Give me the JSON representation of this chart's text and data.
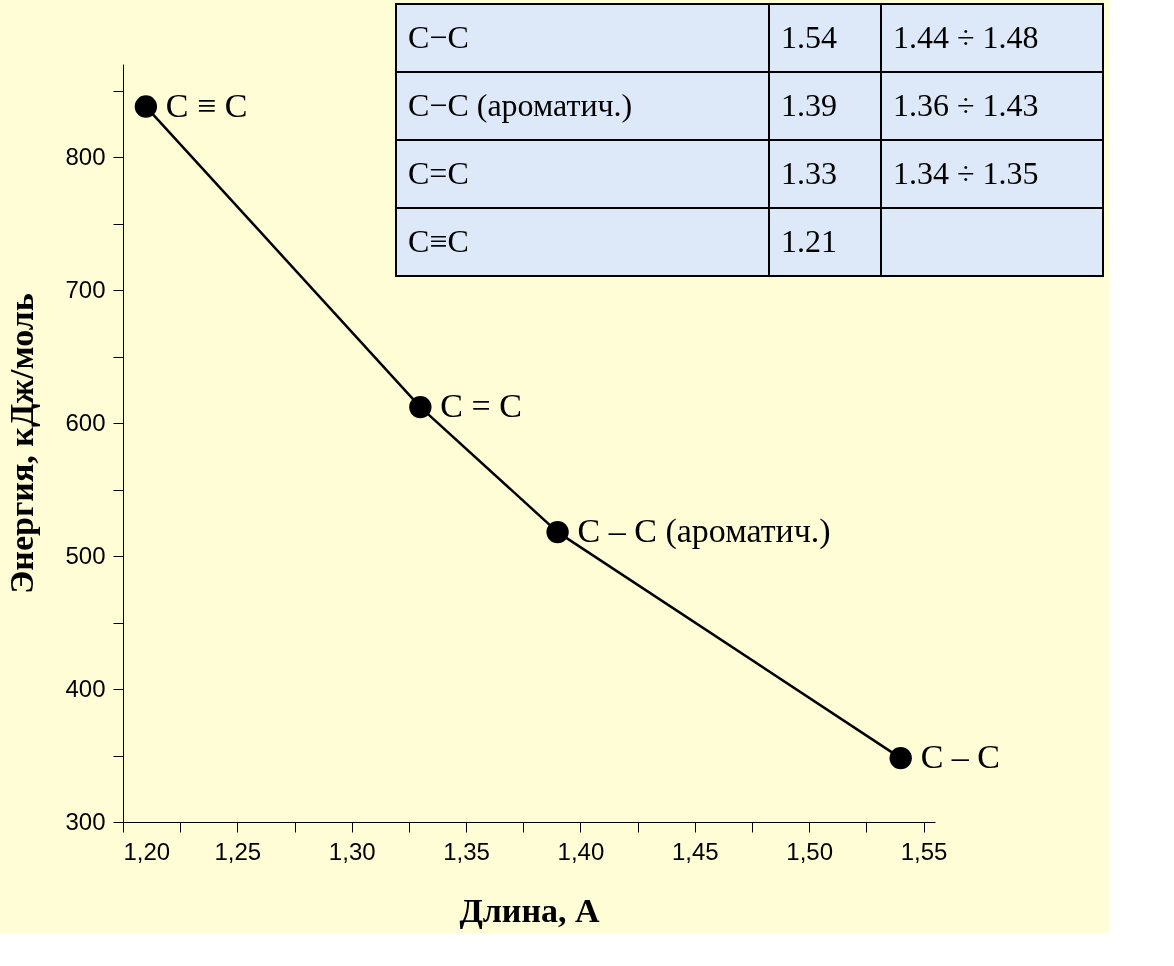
{
  "chart_data": {
    "type": "line",
    "xlabel": "Длина, А",
    "ylabel": "Энергия, кДж/моль",
    "x": [
      1.21,
      1.33,
      1.39,
      1.54
    ],
    "series": [
      {
        "color": "#000000",
        "values": [
          838,
          612,
          518,
          348
        ]
      }
    ],
    "marker": "circle",
    "line_style": "solid",
    "grid": false,
    "xlim": [
      1.2,
      1.555
    ],
    "xticks": [
      {
        "value": 1.2,
        "label": "1,20"
      },
      {
        "value": 1.225,
        "label": null
      },
      {
        "value": 1.25,
        "label": "1,25"
      },
      {
        "value": 1.275,
        "label": null
      },
      {
        "value": 1.3,
        "label": "1,30"
      },
      {
        "value": 1.325,
        "label": null
      },
      {
        "value": 1.35,
        "label": "1,35"
      },
      {
        "value": 1.375,
        "label": null
      },
      {
        "value": 1.4,
        "label": "1,40"
      },
      {
        "value": 1.425,
        "label": null
      },
      {
        "value": 1.45,
        "label": "1,45"
      },
      {
        "value": 1.475,
        "label": null
      },
      {
        "value": 1.5,
        "label": "1,50"
      },
      {
        "value": 1.525,
        "label": null
      },
      {
        "value": 1.55,
        "label": "1,55"
      }
    ],
    "ylim": [
      300,
      870
    ],
    "yticks": [
      300,
      {
        "value": 350,
        "label": null
      },
      400,
      {
        "value": 450,
        "label": null
      },
      500,
      {
        "value": 550,
        "label": null
      },
      600,
      {
        "value": 650,
        "label": null
      },
      700,
      {
        "value": 750,
        "label": null
      },
      800,
      {
        "value": 850,
        "label": null
      }
    ],
    "annotations": [
      {
        "text": "C ≡ C",
        "x": 1.21,
        "y": 838
      },
      {
        "text": "C = C",
        "x": 1.33,
        "y": 612
      },
      {
        "text": "C – C (ароматич.)",
        "x": 1.39,
        "y": 518
      },
      {
        "text": "C – C",
        "x": 1.54,
        "y": 348
      },
      "C−C",
      "1.54",
      "1.44 ÷ 1.48",
      "C−C (ароматич.)",
      "1.39",
      "1.36 ÷ 1.43",
      "C=C",
      "1.33",
      "1.34 ÷ 1.35",
      "C≡C",
      "1.21"
    ]
  }
}
